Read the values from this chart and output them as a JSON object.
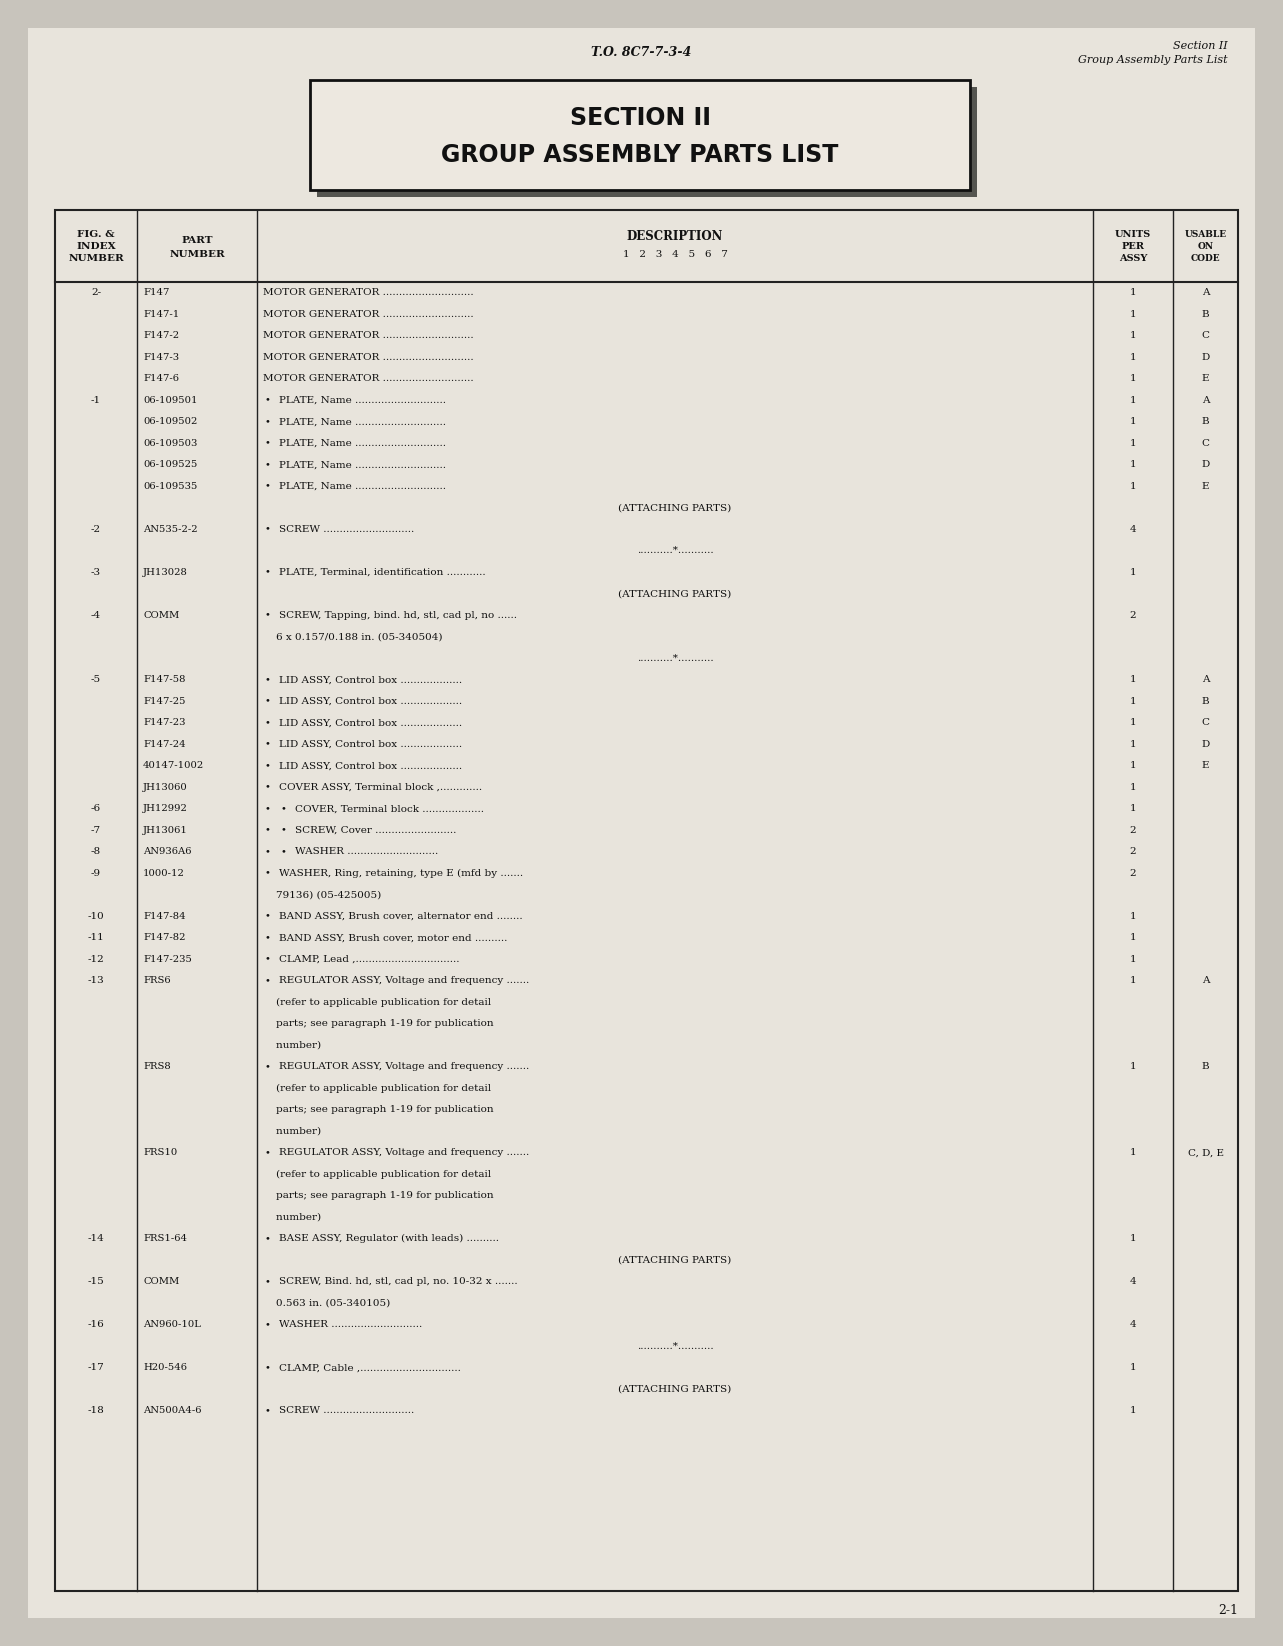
{
  "bg_color": "#c8c4bc",
  "page_color": "#e8e4dc",
  "header_center": "T.O. 8C7-7-3-4",
  "header_right_line1": "Section II",
  "header_right_line2": "Group Assembly Parts List",
  "section_title_line1": "SECTION II",
  "section_title_line2": "GROUP ASSEMBLY PARTS LIST",
  "footer_text": "2-1",
  "rows": [
    {
      "fig": "2-",
      "part": "F147",
      "indent": 0,
      "desc": "MOTOR GENERATOR ............................",
      "units": "1",
      "code": "A"
    },
    {
      "fig": "",
      "part": "F147-1",
      "indent": 0,
      "desc": "MOTOR GENERATOR ............................",
      "units": "1",
      "code": "B"
    },
    {
      "fig": "",
      "part": "F147-2",
      "indent": 0,
      "desc": "MOTOR GENERATOR ............................",
      "units": "1",
      "code": "C"
    },
    {
      "fig": "",
      "part": "F147-3",
      "indent": 0,
      "desc": "MOTOR GENERATOR ............................",
      "units": "1",
      "code": "D"
    },
    {
      "fig": "",
      "part": "F147-6",
      "indent": 0,
      "desc": "MOTOR GENERATOR ............................",
      "units": "1",
      "code": "E"
    },
    {
      "fig": "-1",
      "part": "06-109501",
      "indent": 1,
      "desc": "PLATE, Name ............................",
      "units": "1",
      "code": "A"
    },
    {
      "fig": "",
      "part": "06-109502",
      "indent": 1,
      "desc": "PLATE, Name ............................",
      "units": "1",
      "code": "B"
    },
    {
      "fig": "",
      "part": "06-109503",
      "indent": 1,
      "desc": "PLATE, Name ............................",
      "units": "1",
      "code": "C"
    },
    {
      "fig": "",
      "part": "06-109525",
      "indent": 1,
      "desc": "PLATE, Name ............................",
      "units": "1",
      "code": "D"
    },
    {
      "fig": "",
      "part": "06-109535",
      "indent": 1,
      "desc": "PLATE, Name ............................",
      "units": "1",
      "code": "E"
    },
    {
      "fig": "",
      "part": "",
      "indent": 0,
      "desc": "(ATTACHING PARTS)",
      "units": "",
      "code": "",
      "center_desc": true
    },
    {
      "fig": "-2",
      "part": "AN535-2-2",
      "indent": 1,
      "desc": "SCREW ............................",
      "units": "4",
      "code": ""
    },
    {
      "fig": "",
      "part": "",
      "indent": 0,
      "desc": "...........*...........",
      "units": "",
      "code": "",
      "center_desc": true
    },
    {
      "fig": "-3",
      "part": "JH13028",
      "indent": 1,
      "desc": "PLATE, Terminal, identification ............",
      "units": "1",
      "code": ""
    },
    {
      "fig": "",
      "part": "",
      "indent": 0,
      "desc": "(ATTACHING PARTS)",
      "units": "",
      "code": "",
      "center_desc": true
    },
    {
      "fig": "-4",
      "part": "COMM",
      "indent": 1,
      "desc": "SCREW, Tapping, bind. hd, stl, cad pl, no ......",
      "units": "2",
      "code": ""
    },
    {
      "fig": "",
      "part": "",
      "indent": 0,
      "desc": "    6 x 0.157/0.188 in. (05-340504)",
      "units": "",
      "code": ""
    },
    {
      "fig": "",
      "part": "",
      "indent": 0,
      "desc": "...........*...........",
      "units": "",
      "code": "",
      "center_desc": true
    },
    {
      "fig": "-5",
      "part": "F147-58",
      "indent": 1,
      "desc": "LID ASSY, Control box ...................",
      "units": "1",
      "code": "A"
    },
    {
      "fig": "",
      "part": "F147-25",
      "indent": 1,
      "desc": "LID ASSY, Control box ...................",
      "units": "1",
      "code": "B"
    },
    {
      "fig": "",
      "part": "F147-23",
      "indent": 1,
      "desc": "LID ASSY, Control box ...................",
      "units": "1",
      "code": "C"
    },
    {
      "fig": "",
      "part": "F147-24",
      "indent": 1,
      "desc": "LID ASSY, Control box ...................",
      "units": "1",
      "code": "D"
    },
    {
      "fig": "",
      "part": "40147-1002",
      "indent": 1,
      "desc": "LID ASSY, Control box ...................",
      "units": "1",
      "code": "E"
    },
    {
      "fig": "",
      "part": "JH13060",
      "indent": 1,
      "desc": "COVER ASSY, Terminal block ,.............",
      "units": "1",
      "code": ""
    },
    {
      "fig": "-6",
      "part": "JH12992",
      "indent": 2,
      "desc": "COVER, Terminal block ...................",
      "units": "1",
      "code": ""
    },
    {
      "fig": "-7",
      "part": "JH13061",
      "indent": 2,
      "desc": "SCREW, Cover .........................",
      "units": "2",
      "code": ""
    },
    {
      "fig": "-8",
      "part": "AN936A6",
      "indent": 2,
      "desc": "WASHER ............................",
      "units": "2",
      "code": ""
    },
    {
      "fig": "-9",
      "part": "1000-12",
      "indent": 1,
      "desc": "WASHER, Ring, retaining, type E (mfd by .......",
      "units": "2",
      "code": ""
    },
    {
      "fig": "",
      "part": "",
      "indent": 0,
      "desc": "    79136) (05-425005)",
      "units": "",
      "code": ""
    },
    {
      "fig": "-10",
      "part": "F147-84",
      "indent": 1,
      "desc": "BAND ASSY, Brush cover, alternator end ........",
      "units": "1",
      "code": ""
    },
    {
      "fig": "-11",
      "part": "F147-82",
      "indent": 1,
      "desc": "BAND ASSY, Brush cover, motor end ..........",
      "units": "1",
      "code": ""
    },
    {
      "fig": "-12",
      "part": "F147-235",
      "indent": 1,
      "desc": "CLAMP, Lead ,................................",
      "units": "1",
      "code": ""
    },
    {
      "fig": "-13",
      "part": "FRS6",
      "indent": 1,
      "desc": "REGULATOR ASSY, Voltage and frequency .......",
      "units": "1",
      "code": "A"
    },
    {
      "fig": "",
      "part": "",
      "indent": 0,
      "desc": "    (refer to applicable publication for detail",
      "units": "",
      "code": ""
    },
    {
      "fig": "",
      "part": "",
      "indent": 0,
      "desc": "    parts; see paragraph 1-19 for publication",
      "units": "",
      "code": ""
    },
    {
      "fig": "",
      "part": "",
      "indent": 0,
      "desc": "    number)",
      "units": "",
      "code": ""
    },
    {
      "fig": "",
      "part": "FRS8",
      "indent": 1,
      "desc": "REGULATOR ASSY, Voltage and frequency .......",
      "units": "1",
      "code": "B"
    },
    {
      "fig": "",
      "part": "",
      "indent": 0,
      "desc": "    (refer to applicable publication for detail",
      "units": "",
      "code": ""
    },
    {
      "fig": "",
      "part": "",
      "indent": 0,
      "desc": "    parts; see paragraph 1-19 for publication",
      "units": "",
      "code": ""
    },
    {
      "fig": "",
      "part": "",
      "indent": 0,
      "desc": "    number)",
      "units": "",
      "code": ""
    },
    {
      "fig": "",
      "part": "FRS10",
      "indent": 1,
      "desc": "REGULATOR ASSY, Voltage and frequency .......",
      "units": "1",
      "code": "C, D, E"
    },
    {
      "fig": "",
      "part": "",
      "indent": 0,
      "desc": "    (refer to applicable publication for detail",
      "units": "",
      "code": ""
    },
    {
      "fig": "",
      "part": "",
      "indent": 0,
      "desc": "    parts; see paragraph 1-19 for publication",
      "units": "",
      "code": ""
    },
    {
      "fig": "",
      "part": "",
      "indent": 0,
      "desc": "    number)",
      "units": "",
      "code": ""
    },
    {
      "fig": "-14",
      "part": "FRS1-64",
      "indent": 1,
      "desc": "BASE ASSY, Regulator (with leads) ..........",
      "units": "1",
      "code": ""
    },
    {
      "fig": "",
      "part": "",
      "indent": 0,
      "desc": "(ATTACHING PARTS)",
      "units": "",
      "code": "",
      "center_desc": true
    },
    {
      "fig": "-15",
      "part": "COMM",
      "indent": 1,
      "desc": "SCREW, Bind. hd, stl, cad pl, no. 10-32 x .......",
      "units": "4",
      "code": ""
    },
    {
      "fig": "",
      "part": "",
      "indent": 0,
      "desc": "    0.563 in. (05-340105)",
      "units": "",
      "code": ""
    },
    {
      "fig": "-16",
      "part": "AN960-10L",
      "indent": 1,
      "desc": "WASHER ............................",
      "units": "4",
      "code": ""
    },
    {
      "fig": "",
      "part": "",
      "indent": 0,
      "desc": "...........*...........",
      "units": "",
      "code": "",
      "center_desc": true
    },
    {
      "fig": "-17",
      "part": "H20-546",
      "indent": 1,
      "desc": "CLAMP, Cable ,...............................",
      "units": "1",
      "code": ""
    },
    {
      "fig": "",
      "part": "",
      "indent": 0,
      "desc": "(ATTACHING PARTS)",
      "units": "",
      "code": "",
      "center_desc": true
    },
    {
      "fig": "-18",
      "part": "AN500A4-6",
      "indent": 1,
      "desc": "SCREW ............................",
      "units": "1",
      "code": ""
    }
  ]
}
